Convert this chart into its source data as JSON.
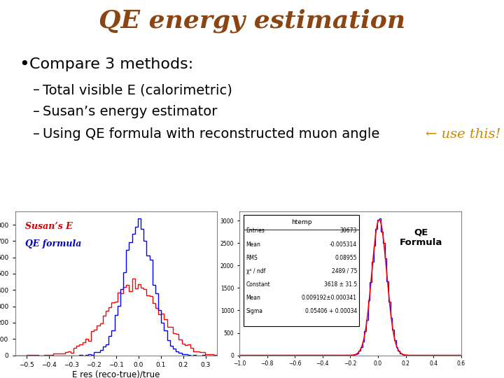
{
  "title": "QE energy estimation",
  "title_color": "#8B4513",
  "title_fontsize": 26,
  "title_fontstyle": "italic",
  "title_fontweight": "bold",
  "bullet_text": "Compare 3 methods:",
  "bullet_fontsize": 16,
  "dash_items": [
    "Total visible E (calorimetric)",
    "Susan’s energy estimator",
    "Using QE formula with reconstructed muon angle"
  ],
  "dash_arrow_text": "← use this!",
  "dash_arrow_color": "#CC8800",
  "dash_fontsize": 14,
  "label_susans_e": "Susan’s E",
  "label_qe_formula": "QE formula",
  "label_susans_color": "#cc0000",
  "label_qe_color": "#0000cc",
  "xlabel_left": "E res (reco-true)/true",
  "label_qe_right": "QE\nFormula",
  "label_qe_right_color": "#000000",
  "bg_color": "#ffffff",
  "stats_title": "htemp",
  "stats_entries": "30673",
  "stats_mean": "-0.005314",
  "stats_rms": "0.08955",
  "stats_chindf": "2489 / 75",
  "stats_constant": "3618 ± 31.5",
  "stats_mean2": "0.009192±0.000341",
  "stats_sigma": "0.05406 + 0.00034"
}
